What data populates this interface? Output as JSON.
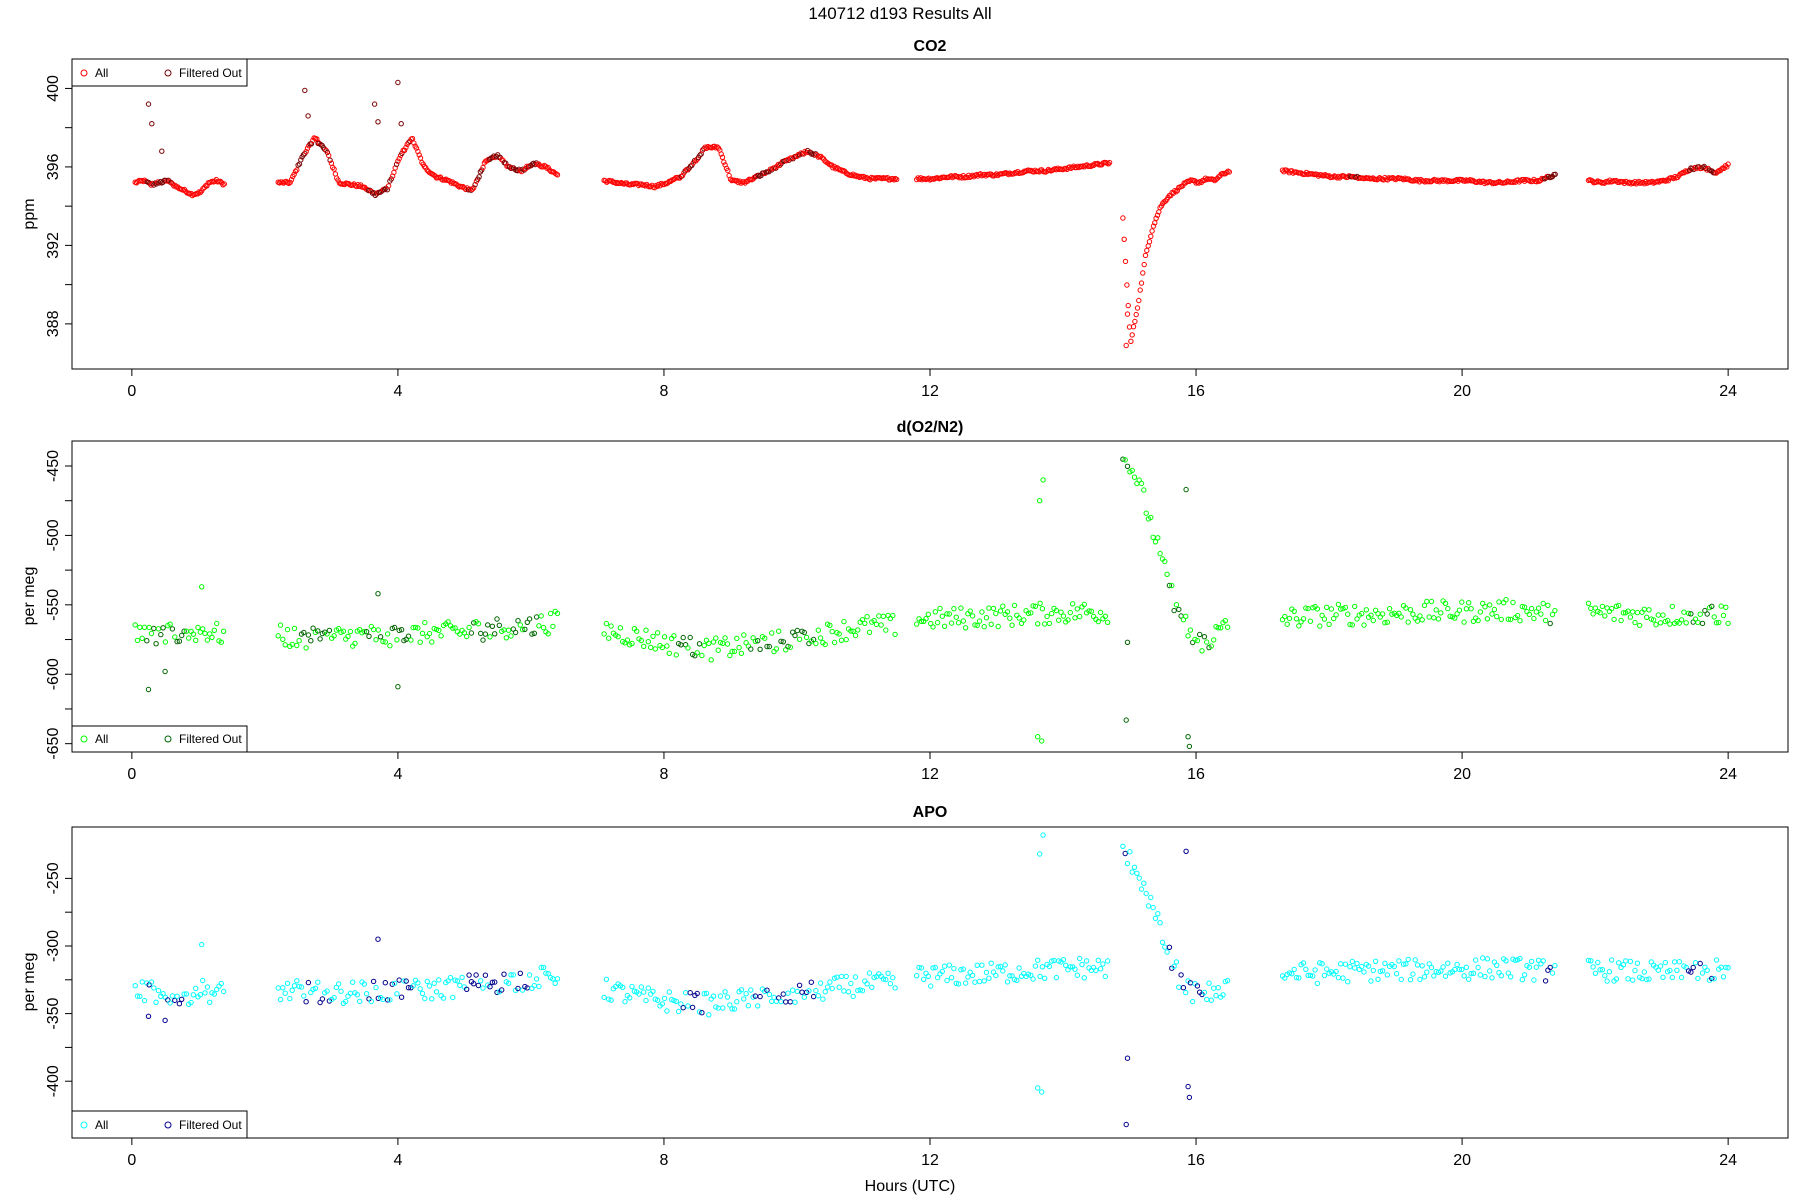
{
  "figure": {
    "title": "140712   d193   Results All",
    "xlabel": "Hours (UTC)"
  },
  "chart_data": [
    {
      "type": "scatter",
      "title": "CO2",
      "xlabel": "Hours (UTC)",
      "ylabel": "ppm",
      "xlim": [
        -0.9,
        24.9
      ],
      "ylim": [
        385.7,
        401.5
      ],
      "xticks": [
        0,
        4,
        8,
        12,
        16,
        20,
        24
      ],
      "yticks": [
        388,
        392,
        396,
        400
      ],
      "legend": {
        "placement": "top-left",
        "entries": [
          "All",
          "Filtered Out"
        ]
      },
      "colors": {
        "All": "#ff0000",
        "Filtered Out": "#7a0000"
      },
      "gaps": [
        [
          1.4,
          2.2
        ],
        [
          6.4,
          7.1
        ],
        [
          11.5,
          11.8
        ],
        [
          14.7,
          14.9
        ],
        [
          16.5,
          17.3
        ],
        [
          21.4,
          21.9
        ]
      ],
      "segments": [
        {
          "x0": 0.05,
          "x1": 1.4,
          "y": [
            395.2,
            395.3,
            395.1,
            395.2,
            395.3,
            395.0,
            394.8,
            394.6,
            394.7,
            395.2,
            395.3,
            395.1
          ]
        },
        {
          "x0": 2.2,
          "x1": 6.4,
          "y": [
            395.2,
            395.2,
            396.5,
            397.5,
            396.8,
            395.2,
            395.1,
            395.0,
            394.6,
            394.9,
            396.5,
            397.5,
            396.0,
            395.5,
            395.3,
            395.0,
            394.8,
            396.2,
            396.6,
            396.0,
            395.8,
            396.2,
            396.0,
            395.6
          ]
        },
        {
          "x0": 7.1,
          "x1": 11.5,
          "y": [
            395.3,
            395.2,
            395.1,
            395.1,
            395.0,
            395.2,
            395.5,
            396.2,
            397.0,
            397.0,
            395.3,
            395.2,
            395.5,
            395.8,
            396.2,
            396.5,
            396.8,
            396.5,
            396.0,
            395.7,
            395.5,
            395.4,
            395.4,
            395.4
          ]
        },
        {
          "x0": 11.8,
          "x1": 14.7,
          "y": [
            395.4,
            395.4,
            395.5,
            395.5,
            395.6,
            395.6,
            395.7,
            395.8,
            395.8,
            395.9,
            396.0,
            396.1,
            396.2
          ]
        },
        {
          "x0": 14.9,
          "x1": 16.5,
          "y": [
            393.4,
            387.0,
            389.0,
            391.5,
            393.0,
            394.0,
            394.5,
            394.8,
            395.1,
            395.3,
            395.2,
            395.4,
            395.3,
            395.6,
            395.8
          ]
        },
        {
          "x0": 17.3,
          "x1": 21.4,
          "y": [
            395.8,
            395.7,
            395.6,
            395.5,
            395.5,
            395.4,
            395.4,
            395.4,
            395.3,
            395.3,
            395.3,
            395.3,
            395.2,
            395.2,
            395.3,
            395.3,
            395.6
          ]
        },
        {
          "x0": 21.9,
          "x1": 24.0,
          "y": [
            395.3,
            395.2,
            395.3,
            395.2,
            395.2,
            395.2,
            395.3,
            395.5,
            395.9,
            396.0,
            395.7,
            396.1
          ]
        }
      ],
      "spikes": [
        {
          "x": 0.25,
          "y": 399.2
        },
        {
          "x": 0.3,
          "y": 398.2
        },
        {
          "x": 0.45,
          "y": 396.8
        },
        {
          "x": 2.6,
          "y": 399.9
        },
        {
          "x": 2.65,
          "y": 398.6
        },
        {
          "x": 2.8,
          "y": 397.2
        },
        {
          "x": 3.65,
          "y": 399.2
        },
        {
          "x": 3.7,
          "y": 398.3
        },
        {
          "x": 4.0,
          "y": 400.3
        },
        {
          "x": 4.05,
          "y": 398.2
        },
        {
          "x": 14.95,
          "y": 386.9
        },
        {
          "x": 14.97,
          "y": 388.5
        }
      ],
      "filtered_ranges": [
        [
          0.2,
          0.6
        ],
        [
          2.5,
          3.0
        ],
        [
          3.5,
          4.2
        ],
        [
          5.0,
          6.1
        ],
        [
          8.2,
          8.6
        ],
        [
          9.3,
          10.3
        ],
        [
          18.3,
          18.5
        ],
        [
          21.2,
          21.4
        ],
        [
          23.4,
          23.8
        ]
      ]
    },
    {
      "type": "scatter",
      "title": "d(O2/N2)",
      "xlabel": "Hours (UTC)",
      "ylabel": "per meg",
      "xlim": [
        -0.9,
        24.9
      ],
      "ylim": [
        -656,
        -432
      ],
      "xticks": [
        0,
        4,
        8,
        12,
        16,
        20,
        24
      ],
      "yticks": [
        -650,
        -600,
        -550,
        -500,
        -450
      ],
      "legend": {
        "placement": "bottom-left",
        "entries": [
          "All",
          "Filtered Out"
        ]
      },
      "colors": {
        "All": "#00ff00",
        "Filtered Out": "#006400"
      },
      "gaps": [
        [
          1.4,
          2.2
        ],
        [
          6.4,
          7.1
        ],
        [
          11.5,
          11.8
        ],
        [
          14.7,
          14.9
        ],
        [
          16.5,
          17.3
        ],
        [
          21.4,
          21.9
        ]
      ],
      "segments": [
        {
          "x0": 0.05,
          "x1": 1.4,
          "y": [
            -572,
            -570,
            -575,
            -570,
            -572,
            -568,
            -570,
            -572
          ]
        },
        {
          "x0": 2.2,
          "x1": 6.4,
          "y": [
            -572,
            -575,
            -574,
            -572,
            -572,
            -572,
            -570,
            -570,
            -568,
            -566,
            -565,
            -562
          ]
        },
        {
          "x0": 7.1,
          "x1": 11.5,
          "y": [
            -568,
            -572,
            -576,
            -580,
            -582,
            -580,
            -578,
            -575,
            -572,
            -568,
            -565,
            -565
          ]
        },
        {
          "x0": 11.8,
          "x1": 14.7,
          "y": [
            -560,
            -560,
            -559,
            -558,
            -557,
            -556,
            -555,
            -556
          ]
        },
        {
          "x0": 14.9,
          "x1": 16.5,
          "y": [
            -445,
            -455,
            -480,
            -510,
            -540,
            -560,
            -575,
            -578,
            -570,
            -565
          ]
        },
        {
          "x0": 17.3,
          "x1": 21.4,
          "y": [
            -560,
            -558,
            -557,
            -557,
            -556,
            -555,
            -555,
            -554,
            -554,
            -556
          ]
        },
        {
          "x0": 21.9,
          "x1": 24.0,
          "y": [
            -555,
            -556,
            -557,
            -558,
            -557,
            -556,
            -557
          ]
        }
      ],
      "spikes": [
        {
          "x": 0.25,
          "y": -611
        },
        {
          "x": 0.5,
          "y": -598
        },
        {
          "x": 1.05,
          "y": -537
        },
        {
          "x": 3.7,
          "y": -542
        },
        {
          "x": 4.0,
          "y": -609
        },
        {
          "x": 13.65,
          "y": -475
        },
        {
          "x": 13.7,
          "y": -460
        },
        {
          "x": 13.62,
          "y": -645
        },
        {
          "x": 13.68,
          "y": -648
        },
        {
          "x": 14.95,
          "y": -633
        },
        {
          "x": 14.97,
          "y": -577
        },
        {
          "x": 15.85,
          "y": -467
        },
        {
          "x": 15.88,
          "y": -645
        },
        {
          "x": 15.9,
          "y": -652
        }
      ],
      "filtered_ranges": [
        [
          0.2,
          0.8
        ],
        [
          2.5,
          3.0
        ],
        [
          3.5,
          4.2
        ],
        [
          5.0,
          6.1
        ],
        [
          8.2,
          8.6
        ],
        [
          9.3,
          10.3
        ],
        [
          14.9,
          15.0
        ],
        [
          15.6,
          16.2
        ],
        [
          21.2,
          21.4
        ],
        [
          23.4,
          23.8
        ]
      ]
    },
    {
      "type": "scatter",
      "title": "APO",
      "xlabel": "Hours (UTC)",
      "ylabel": "per meg",
      "xlim": [
        -0.9,
        24.9
      ],
      "ylim": [
        -442,
        -212
      ],
      "xticks": [
        0,
        4,
        8,
        12,
        16,
        20,
        24
      ],
      "yticks": [
        -400,
        -350,
        -300,
        -250
      ],
      "legend": {
        "placement": "bottom-left",
        "entries": [
          "All",
          "Filtered Out"
        ]
      },
      "colors": {
        "All": "#00ffff",
        "Filtered Out": "#00008b"
      },
      "gaps": [
        [
          1.4,
          2.2
        ],
        [
          6.4,
          7.1
        ],
        [
          11.5,
          11.8
        ],
        [
          14.7,
          14.9
        ],
        [
          16.5,
          17.3
        ],
        [
          21.4,
          21.9
        ]
      ],
      "segments": [
        {
          "x0": 0.05,
          "x1": 1.4,
          "y": [
            -335,
            -333,
            -338,
            -335,
            -336,
            -332,
            -334,
            -335
          ]
        },
        {
          "x0": 2.2,
          "x1": 6.4,
          "y": [
            -333,
            -334,
            -335,
            -334,
            -334,
            -333,
            -332,
            -330,
            -328,
            -326,
            -324,
            -322
          ]
        },
        {
          "x0": 7.1,
          "x1": 11.5,
          "y": [
            -332,
            -336,
            -340,
            -342,
            -343,
            -340,
            -337,
            -335,
            -333,
            -330,
            -328,
            -328
          ]
        },
        {
          "x0": 11.8,
          "x1": 14.7,
          "y": [
            -322,
            -322,
            -321,
            -320,
            -318,
            -317,
            -316,
            -316
          ]
        },
        {
          "x0": 14.9,
          "x1": 16.5,
          "y": [
            -232,
            -240,
            -260,
            -285,
            -310,
            -328,
            -335,
            -336,
            -332,
            -328
          ]
        },
        {
          "x0": 17.3,
          "x1": 21.4,
          "y": [
            -320,
            -320,
            -319,
            -318,
            -318,
            -317,
            -317,
            -316,
            -317,
            -319
          ]
        },
        {
          "x0": 21.9,
          "x1": 24.0,
          "y": [
            -318,
            -318,
            -319,
            -320,
            -319,
            -318,
            -318
          ]
        }
      ],
      "spikes": [
        {
          "x": 0.25,
          "y": -352
        },
        {
          "x": 0.5,
          "y": -355
        },
        {
          "x": 1.05,
          "y": -299
        },
        {
          "x": 3.7,
          "y": -295
        },
        {
          "x": 13.65,
          "y": -232
        },
        {
          "x": 13.7,
          "y": -218
        },
        {
          "x": 13.62,
          "y": -405
        },
        {
          "x": 13.68,
          "y": -408
        },
        {
          "x": 14.95,
          "y": -432
        },
        {
          "x": 14.97,
          "y": -383
        },
        {
          "x": 15.85,
          "y": -230
        },
        {
          "x": 15.88,
          "y": -404
        },
        {
          "x": 15.9,
          "y": -412
        }
      ],
      "filtered_ranges": [
        [
          0.2,
          0.8
        ],
        [
          2.5,
          3.0
        ],
        [
          3.5,
          4.2
        ],
        [
          5.0,
          6.1
        ],
        [
          8.2,
          8.6
        ],
        [
          9.3,
          10.3
        ],
        [
          14.9,
          15.0
        ],
        [
          15.6,
          16.2
        ],
        [
          21.2,
          21.4
        ],
        [
          23.4,
          23.8
        ]
      ]
    }
  ]
}
